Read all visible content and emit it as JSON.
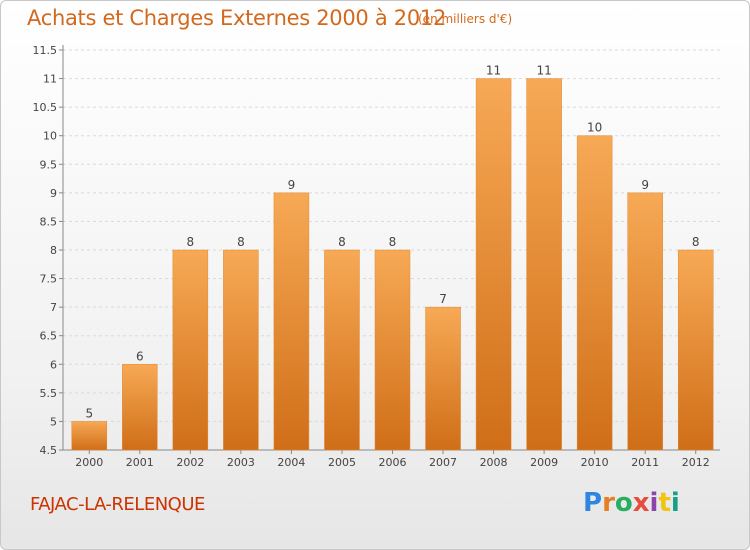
{
  "header": {
    "title": "Achats et Charges Externes 2000 à 2012",
    "subtitle": "(en milliers d'€)"
  },
  "footer": {
    "commune": "FAJAC-LA-RELENQUE",
    "logo_text": "Proxiti"
  },
  "colors": {
    "bar_top": "#f7a955",
    "bar_bottom": "#d06e18",
    "title": "#d2691e",
    "commune": "#cc3300"
  },
  "chart_data": {
    "type": "bar",
    "title": "Achats et Charges Externes 2000 à 2012",
    "subtitle": "(en milliers d'€)",
    "xlabel": "",
    "ylabel": "",
    "categories": [
      "2000",
      "2001",
      "2002",
      "2003",
      "2004",
      "2005",
      "2006",
      "2007",
      "2008",
      "2009",
      "2010",
      "2011",
      "2012"
    ],
    "values": [
      5,
      6,
      8,
      8,
      9,
      8,
      8,
      7,
      11,
      11,
      10,
      9,
      8
    ],
    "data_labels": [
      "5",
      "6",
      "8",
      "8",
      "9",
      "8",
      "8",
      "7",
      "11",
      "11",
      "10",
      "9",
      "8"
    ],
    "ylim": [
      4.5,
      11.5
    ],
    "yticks": [
      "4.5",
      "5",
      "5.5",
      "6",
      "6.5",
      "7",
      "7.5",
      "8",
      "8.5",
      "9",
      "9.5",
      "10",
      "10.5",
      "11",
      "11.5"
    ],
    "grid": true
  }
}
